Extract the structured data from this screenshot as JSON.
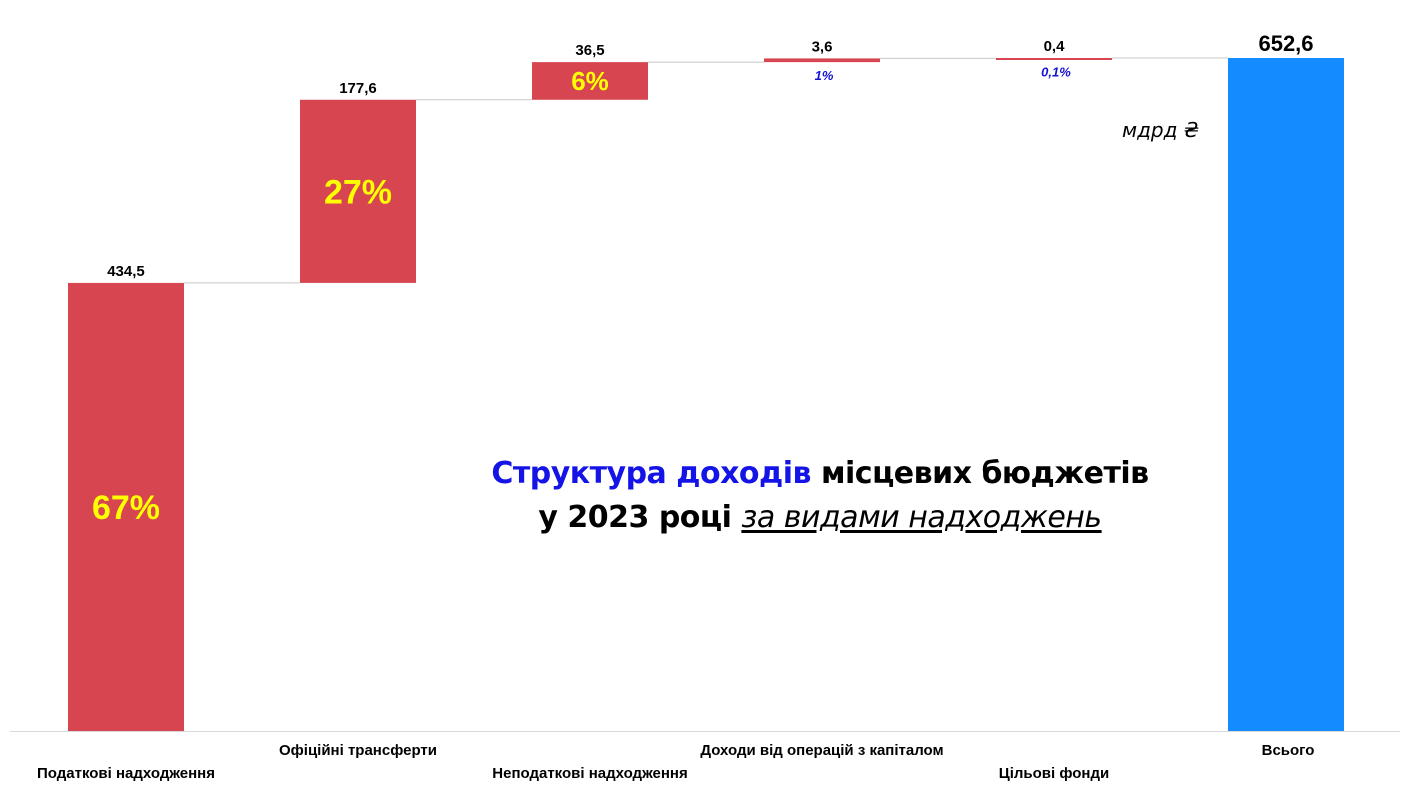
{
  "chart_data": {
    "type": "waterfall",
    "unit_label": "мдрд ₴",
    "categories": [
      "Податкові надходження",
      "Офіційні трансферти",
      "Неподаткові надходження",
      "Доходи від операцій з капіталом",
      "Цільові фонди",
      "Всього"
    ],
    "values": [
      434.5,
      177.6,
      36.5,
      3.6,
      0.4,
      652.6
    ],
    "value_labels": [
      "434,5",
      "177,6",
      "36,5",
      "3,6",
      "0,4",
      "652,6"
    ],
    "shares": [
      "67%",
      "27%",
      "6%",
      "1%",
      "0,1%",
      ""
    ],
    "total_index": 5,
    "colors": {
      "increase": "#d64550",
      "total": "#148cff",
      "share_large": "#ffff00",
      "share_small": "#1414d2",
      "connector": "#c8c8c8",
      "axis": "#d9d9d9"
    },
    "ylim": [
      0,
      652.6
    ]
  },
  "title": {
    "part1": "Структура доходів",
    "part2": " місцевих бюджетів",
    "line2_prefix": "у 2023 році ",
    "line2_emphasis": "за видами надходжень"
  }
}
